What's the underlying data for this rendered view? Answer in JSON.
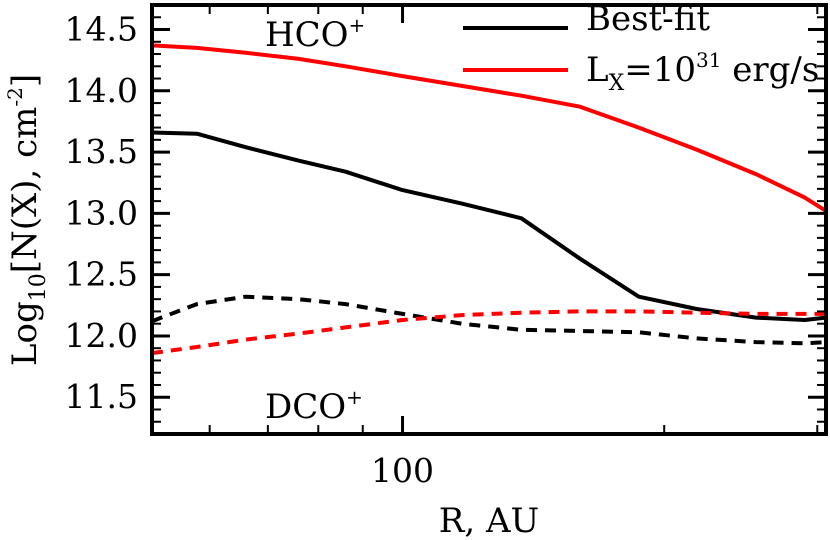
{
  "chart_data": {
    "type": "line",
    "xlabel": "R, AU",
    "ylabel": {
      "base": "Log",
      "sub": "10",
      "main": "[N(X), cm",
      "sup": "-2",
      "end": "]"
    },
    "x_scale": "log",
    "xlim": [
      51.5,
      307
    ],
    "ylim": [
      11.2,
      14.7
    ],
    "x_ticks": [
      100
    ],
    "x_tick_labels": [
      "100"
    ],
    "y_ticks": [
      11.5,
      12.0,
      12.5,
      13.0,
      13.5,
      14.0,
      14.5
    ],
    "y_tick_labels": [
      "11.5",
      "12.0",
      "12.5",
      "13.0",
      "13.5",
      "14.0",
      "14.5"
    ],
    "grid": false,
    "legend_position": "top-right",
    "legend": [
      {
        "label_main": "Best-fit",
        "color": "#000000"
      },
      {
        "label_base": "L",
        "label_sub": "X",
        "label_mid": "=10",
        "label_sup": "31",
        "label_end": " erg/s",
        "color": "#ff0000"
      }
    ],
    "annotations": [
      {
        "base": "HCO",
        "sup": "+"
      },
      {
        "base": "DCO",
        "sup": "+"
      }
    ],
    "series": [
      {
        "species": "HCO+",
        "model": "best-fit",
        "color": "#000000",
        "dash": "solid",
        "x": [
          51.5,
          58,
          66,
          76,
          86,
          100,
          117,
          137,
          160,
          187,
          218,
          255,
          290,
          307
        ],
        "y": [
          13.66,
          13.65,
          13.54,
          13.43,
          13.34,
          13.19,
          13.08,
          12.96,
          12.63,
          12.32,
          12.22,
          12.15,
          12.13,
          12.15
        ]
      },
      {
        "species": "HCO+",
        "model": "Lx=1e31",
        "color": "#ff0000",
        "dash": "solid",
        "x": [
          51.5,
          58,
          66,
          76,
          86,
          100,
          117,
          137,
          160,
          187,
          218,
          255,
          290,
          307
        ],
        "y": [
          14.37,
          14.35,
          14.31,
          14.26,
          14.2,
          14.12,
          14.04,
          13.96,
          13.87,
          13.7,
          13.52,
          13.32,
          13.13,
          13.02
        ]
      },
      {
        "species": "DCO+",
        "model": "best-fit",
        "color": "#000000",
        "dash": "dashed",
        "x": [
          51.5,
          58,
          66,
          76,
          86,
          100,
          117,
          137,
          160,
          187,
          218,
          255,
          290,
          307
        ],
        "y": [
          12.12,
          12.26,
          12.32,
          12.3,
          12.26,
          12.18,
          12.1,
          12.05,
          12.04,
          12.03,
          11.98,
          11.95,
          11.94,
          11.95
        ]
      },
      {
        "species": "DCO+",
        "model": "Lx=1e31",
        "color": "#ff0000",
        "dash": "dashed",
        "x": [
          51.5,
          58,
          66,
          76,
          86,
          100,
          117,
          137,
          160,
          187,
          218,
          255,
          290,
          307
        ],
        "y": [
          11.86,
          11.91,
          11.97,
          12.02,
          12.07,
          12.13,
          12.17,
          12.19,
          12.2,
          12.2,
          12.19,
          12.18,
          12.18,
          12.18
        ]
      }
    ]
  }
}
